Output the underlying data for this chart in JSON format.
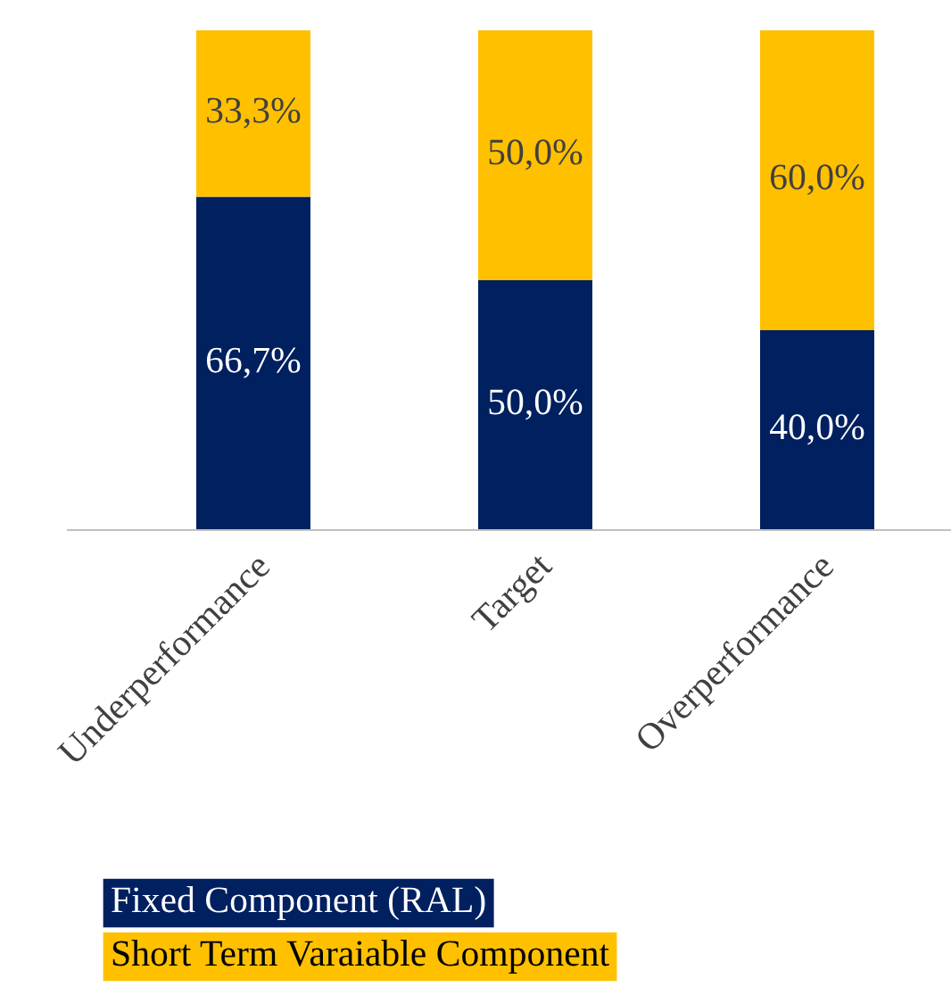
{
  "chart_data": {
    "type": "bar",
    "stacked": true,
    "legend": "bottom",
    "categories": [
      "Underperformance",
      "Target",
      "Overperformance"
    ],
    "series": [
      {
        "name": "Fixed Component (RAL)",
        "color": "#002060",
        "values": [
          66.7,
          50.0,
          40.0
        ],
        "value_labels": [
          "66,7%",
          "50,0%",
          "40,0%"
        ]
      },
      {
        "name": "Short Term Varaiable Component",
        "color": "#ffc000",
        "values": [
          33.3,
          50.0,
          60.0
        ],
        "value_labels": [
          "33,3%",
          "50,0%",
          "60,0%"
        ]
      }
    ]
  }
}
